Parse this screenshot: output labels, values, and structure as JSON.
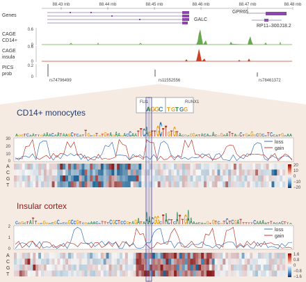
{
  "track_panel": {
    "axis_ticks": [
      "88.43 mb",
      "88.44 mb",
      "88.45 mb",
      "88.46 mb",
      "88.47 mb",
      "88.48 mb"
    ],
    "labels": {
      "genes": "Genes",
      "cage_cd14_line1": "CAGE",
      "cage_cd14_line2": "CD14+",
      "cage_insula_line1": "CAGE",
      "cage_insula_line2": "insula",
      "pics_line1": "PICS",
      "pics_line2": "prob"
    },
    "genes": [
      "GALC",
      "GPR65",
      "RP11–300J18.2"
    ],
    "cage_cd14_ticks": [
      "0.6",
      "0"
    ],
    "cage_insula_ticks": [
      "0.6",
      "0"
    ],
    "pics_ticks": [
      "0.2",
      "0"
    ],
    "snps": [
      "rs74796499",
      "rs11552556",
      "rs78461372"
    ],
    "colors": {
      "cage_cd14": "#6aa84f",
      "cage_insula": "#cc4125",
      "pics": "#555555",
      "gene": "#8e44ad",
      "zoom_bg": "#f6ebe2"
    }
  },
  "motifs": {
    "left": "FLI1",
    "right": "RUNX1"
  },
  "cd14_panel": {
    "title": "CD14+ monocytes",
    "title_color": "#1f3b73",
    "y_ticks": [
      "30",
      "20",
      "10",
      "0"
    ],
    "legend": [
      {
        "name": "loss",
        "color": "#3b6fb6"
      },
      {
        "name": "gain",
        "color": "#c0392b"
      }
    ],
    "bases": [
      "A",
      "C",
      "G",
      "T"
    ],
    "colorbar_ticks": [
      "20",
      "10",
      "0",
      "−10",
      "−20"
    ]
  },
  "insula_panel": {
    "title": "Insular cortex",
    "title_color": "#8b1a1a",
    "y_ticks": [
      "2",
      "1",
      "0"
    ],
    "legend": [
      {
        "name": "loss",
        "color": "#3b6fb6"
      },
      {
        "name": "gain",
        "color": "#c0392b"
      }
    ],
    "bases": [
      "A",
      "C",
      "G",
      "T"
    ],
    "colorbar_ticks": [
      "1.6",
      "0.8",
      "0",
      "−0.8",
      "−1.6"
    ]
  }
}
